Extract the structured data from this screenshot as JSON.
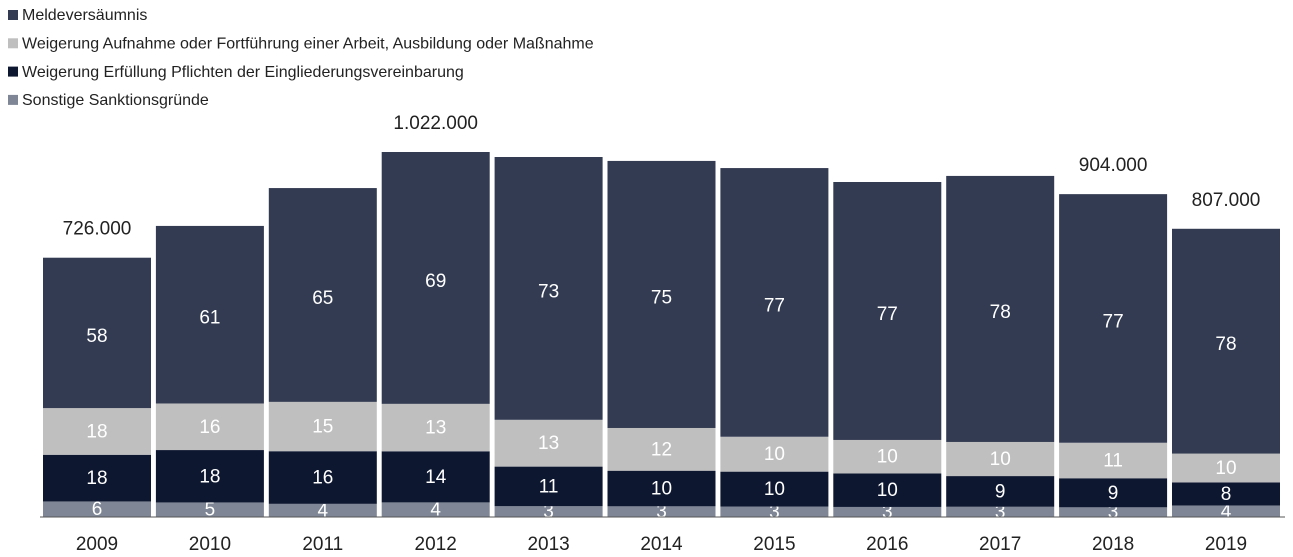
{
  "chart_data": {
    "type": "bar",
    "stacked": true,
    "categories": [
      "2009",
      "2010",
      "2011",
      "2012",
      "2013",
      "2014",
      "2015",
      "2016",
      "2017",
      "2018",
      "2019"
    ],
    "totals": {
      "values": [
        726000,
        815000,
        921000,
        1022000,
        1008000,
        997000,
        977000,
        938000,
        955000,
        904000,
        807000
      ],
      "value_labels": [
        "726.000",
        null,
        null,
        "1.022.000",
        null,
        null,
        null,
        null,
        null,
        "904.000",
        "807.000"
      ]
    },
    "series": [
      {
        "name": "Meldeversäumnis",
        "color": "#333b52",
        "values": [
          58,
          61,
          65,
          69,
          73,
          75,
          77,
          77,
          78,
          77,
          78
        ]
      },
      {
        "name": "Weigerung Aufnahme oder Fortführung einer Arbeit, Ausbildung oder Maßnahme",
        "color": "#bfbfbf",
        "values": [
          18,
          16,
          15,
          13,
          13,
          12,
          10,
          10,
          10,
          11,
          10
        ]
      },
      {
        "name": "Weigerung Erfüllung Pflichten der Eingliederungsvereinbarung",
        "color": "#0d1730",
        "values": [
          18,
          18,
          16,
          14,
          11,
          10,
          10,
          10,
          9,
          9,
          8
        ]
      },
      {
        "name": "Sonstige Sanktionsgründe",
        "color": "#7f8796",
        "values": [
          6,
          5,
          4,
          4,
          3,
          3,
          3,
          3,
          3,
          3,
          4
        ]
      }
    ]
  }
}
